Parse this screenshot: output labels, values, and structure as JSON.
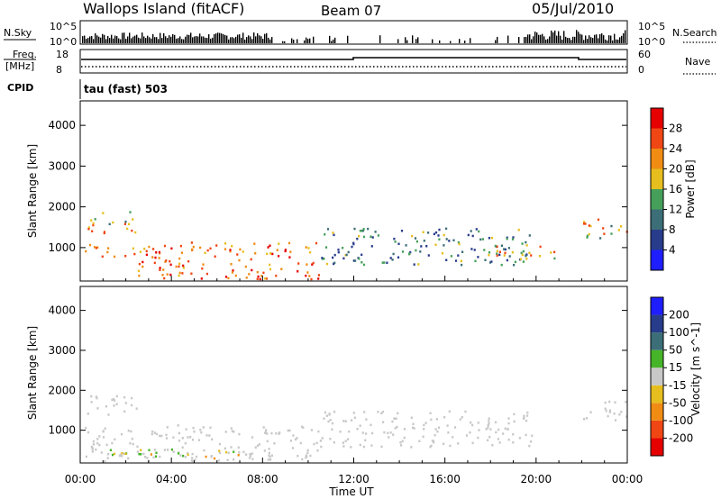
{
  "header": {
    "site": "Wallops Island (fitACF)",
    "beam": "Beam 07",
    "date": "05/Jul/2010"
  },
  "top_panels": {
    "nsky_label": "N.Sky",
    "nsky_ticks": [
      "10^5",
      "10^0"
    ],
    "nsearch_label": "N.Search",
    "nsearch_ticks": [
      "10^5",
      "10^0"
    ],
    "freq_label_1": "Freq.",
    "freq_label_2": "[MHz]",
    "freq_ticks": [
      "18",
      "8"
    ],
    "nave_label": "Nave",
    "nave_ticks": [
      "60",
      "0"
    ],
    "cpid_label": "CPID",
    "cpid_value": "tau (fast) 503"
  },
  "colors": {
    "power_scale": [
      "#1e1eff",
      "#283c8c",
      "#3c6e78",
      "#46a05a",
      "#e6be1e",
      "#f08c14",
      "#f04614",
      "#e60000"
    ],
    "velocity_scale": [
      "#e60000",
      "#f04614",
      "#f08c14",
      "#e6be1e",
      "#c8c8c8",
      "#46b428",
      "#3c6e78",
      "#283c8c",
      "#1e1eff"
    ],
    "ground_scatter": "#c8c8c8"
  },
  "chart_data": [
    {
      "type": "heatmap",
      "title": "Power",
      "ylabel": "Slant Range [km]",
      "xlabel": "Time UT",
      "xlim": [
        "00:00",
        "24:00"
      ],
      "ylim": [
        180,
        4600
      ],
      "x_ticks": [
        "00:00",
        "04:00",
        "08:00",
        "12:00",
        "16:00",
        "20:00",
        "00:00"
      ],
      "y_ticks": [
        1000,
        2000,
        3000,
        4000
      ],
      "colorbar": {
        "label": "Power [dB]",
        "ticks": [
          4,
          8,
          12,
          16,
          20,
          24,
          28
        ]
      },
      "features": [
        {
          "t0": 0.3,
          "t1": 2.5,
          "r0": 1350,
          "r1": 1900,
          "level": "medium-high"
        },
        {
          "t0": 0.2,
          "t1": 2.5,
          "r0": 800,
          "r1": 1100,
          "level": "high"
        },
        {
          "t0": 2.5,
          "t1": 10.5,
          "r0": 250,
          "r1": 1150,
          "level": "high"
        },
        {
          "t0": 10.5,
          "t1": 19.8,
          "r0": 600,
          "r1": 1500,
          "level": "medium"
        },
        {
          "t0": 17.8,
          "t1": 20.8,
          "r0": 700,
          "r1": 1100,
          "level": "medium-high"
        },
        {
          "t0": 22.0,
          "t1": 24.0,
          "r0": 1250,
          "r1": 1750,
          "level": "medium-high"
        }
      ]
    },
    {
      "type": "heatmap",
      "title": "Velocity",
      "ylabel": "Slant Range [km]",
      "xlabel": "Time UT",
      "xlim": [
        "00:00",
        "24:00"
      ],
      "ylim": [
        180,
        4600
      ],
      "x_ticks": [
        "00:00",
        "04:00",
        "08:00",
        "12:00",
        "16:00",
        "20:00",
        "00:00"
      ],
      "y_ticks": [
        1000,
        2000,
        3000,
        4000
      ],
      "colorbar": {
        "label": "Velocity [m s^-1]",
        "ticks": [
          200,
          100,
          50,
          15,
          -15,
          -50,
          -100,
          -200
        ]
      },
      "features": [
        {
          "t0": 0.3,
          "t1": 2.5,
          "r0": 1350,
          "r1": 1900,
          "value": "ground scatter"
        },
        {
          "t0": 0.2,
          "t1": 10.5,
          "r0": 250,
          "r1": 1150,
          "value": "ground scatter"
        },
        {
          "t0": 10.5,
          "t1": 19.8,
          "r0": 600,
          "r1": 1500,
          "value": "ground scatter"
        },
        {
          "t0": 0.5,
          "t1": 7.0,
          "r0": 300,
          "r1": 550,
          "value": "-50 to 50"
        },
        {
          "t0": 22.0,
          "t1": 24.0,
          "r0": 1250,
          "r1": 1750,
          "value": "ground scatter"
        }
      ]
    }
  ]
}
